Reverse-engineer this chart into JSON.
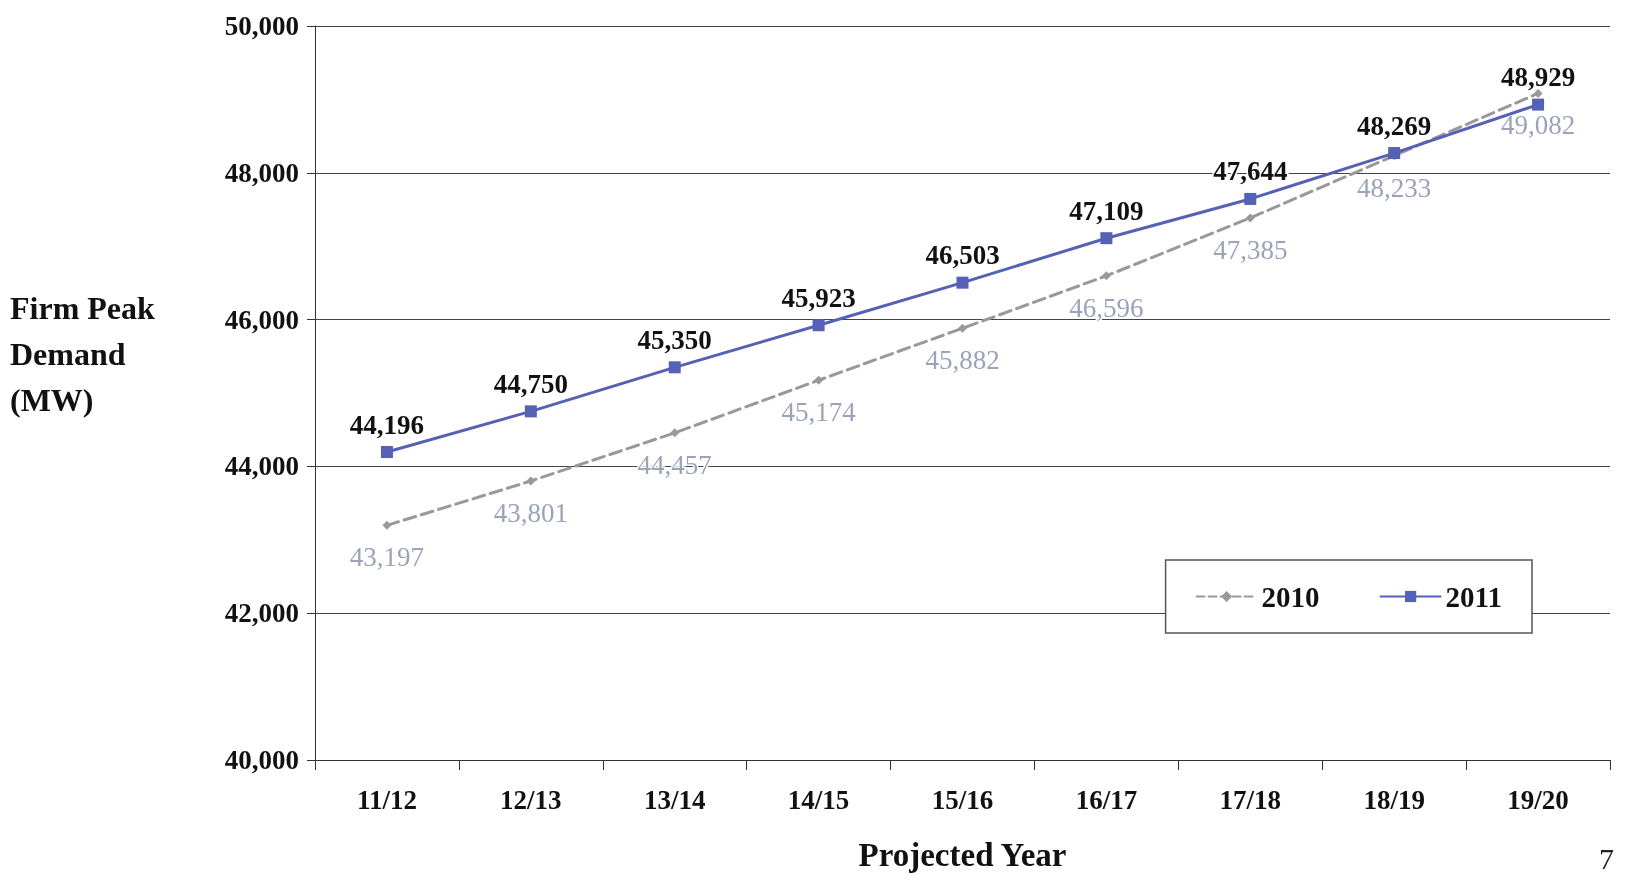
{
  "chart_data": {
    "type": "line",
    "xlabel": "Projected Year",
    "ylabel": "Firm Peak Demand (MW)",
    "categories": [
      "11/12",
      "12/13",
      "13/14",
      "14/15",
      "15/16",
      "16/17",
      "17/18",
      "18/19",
      "19/20"
    ],
    "series": [
      {
        "name": "2010",
        "color": "#999999",
        "marker": "diamond",
        "line_style": "dashed",
        "values": [
          43197,
          43801,
          44457,
          45174,
          45882,
          46596,
          47385,
          48233,
          49082
        ],
        "value_labels": [
          "43,197",
          "43,801",
          "44,457",
          "45,174",
          "45,882",
          "46,596",
          "47,385",
          "48,233",
          "49,082"
        ]
      },
      {
        "name": "2011",
        "color": "#5461b5",
        "marker": "square",
        "line_style": "solid",
        "values": [
          44196,
          44750,
          45350,
          45923,
          46503,
          47109,
          47644,
          48269,
          48929
        ],
        "value_labels": [
          "44,196",
          "44,750",
          "45,350",
          "45,923",
          "46,503",
          "47,109",
          "47,644",
          "48,269",
          "48,929"
        ]
      }
    ],
    "ylim": [
      40000,
      50000
    ],
    "yticks": [
      {
        "value": 40000,
        "label": "40,000"
      },
      {
        "value": 42000,
        "label": "42,000"
      },
      {
        "value": 44000,
        "label": "44,000"
      },
      {
        "value": 46000,
        "label": "46,000"
      },
      {
        "value": 48000,
        "label": "48,000"
      },
      {
        "value": 50000,
        "label": "50,000"
      }
    ],
    "grid": "y",
    "legend": "bottom right",
    "annotations": [
      "7"
    ]
  }
}
